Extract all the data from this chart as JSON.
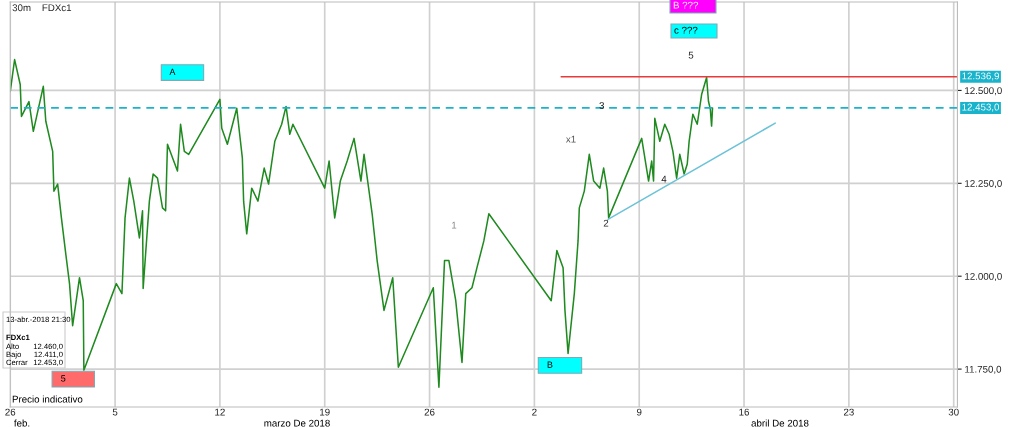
{
  "chart_data": {
    "type": "line",
    "title": "30m    FDXc1",
    "xlim": [
      "2018-02-26",
      "2018-04-30T06:00"
    ],
    "ylim": [
      11648,
      12738
    ],
    "xticks": [
      {
        "value": "2018-02-26",
        "label": "26"
      },
      {
        "value": "2018-03-05",
        "label": "5"
      },
      {
        "value": "2018-03-12",
        "label": "12"
      },
      {
        "value": "2018-03-19",
        "label": "19"
      },
      {
        "value": "2018-03-26",
        "label": "26"
      },
      {
        "value": "2018-04-02",
        "label": "2"
      },
      {
        "value": "2018-04-09",
        "label": "9"
      },
      {
        "value": "2018-04-16",
        "label": "16"
      },
      {
        "value": "2018-04-23",
        "label": "23"
      },
      {
        "value": "2018-04-30",
        "label": "30"
      }
    ],
    "yticks": [
      {
        "value": 11750,
        "label": "11.750,0"
      },
      {
        "value": 12000,
        "label": "12.000,0"
      },
      {
        "value": 12250,
        "label": "12.250,0"
      },
      {
        "value": 12500,
        "label": "12.500,0"
      }
    ],
    "grid": true,
    "marker": "none",
    "line_style": "solid",
    "series": [
      {
        "color": "#1f8a1f",
        "x": [
          "2018-02-26T00:00",
          "2018-02-26T07:00",
          "2018-02-26T16:00",
          "2018-02-26T18:00",
          "2018-02-27T06:00",
          "2018-02-27T13:00",
          "2018-02-28T05:00",
          "2018-02-28T09:00",
          "2018-02-28T20:00",
          "2018-02-28T22:00",
          "2018-03-01T04:00",
          "2018-03-01T10:00",
          "2018-03-01T17:00",
          "2018-03-01T23:00",
          "2018-03-02T04:00",
          "2018-03-02T15:00",
          "2018-03-02T21:00",
          "2018-03-02T22:00",
          "2018-03-05T02:00",
          "2018-03-05T11:00",
          "2018-03-05T16:00",
          "2018-03-05T23:00",
          "2018-03-06T06:00",
          "2018-03-06T15:00",
          "2018-03-06T20:00",
          "2018-03-06T21:00",
          "2018-03-07T07:00",
          "2018-03-07T13:00",
          "2018-03-07T20:00",
          "2018-03-08T04:00",
          "2018-03-08T09:00",
          "2018-03-08T12:00",
          "2018-03-09T04:00",
          "2018-03-09T09:00",
          "2018-03-09T15:00",
          "2018-03-09T22:00",
          "2018-03-12T00:00",
          "2018-03-12T03:00",
          "2018-03-12T12:00",
          "2018-03-13T03:00",
          "2018-03-13T12:00",
          "2018-03-13T14:00",
          "2018-03-13T19:00",
          "2018-03-14T03:00",
          "2018-03-14T13:00",
          "2018-03-14T23:00",
          "2018-03-15T06:00",
          "2018-03-15T16:00",
          "2018-03-16T03:00",
          "2018-03-16T10:00",
          "2018-03-16T16:00",
          "2018-03-16T21:00",
          "2018-03-19T00:00",
          "2018-03-19T07:00",
          "2018-03-19T16:00",
          "2018-03-20T01:00",
          "2018-03-20T12:00",
          "2018-03-20T23:00",
          "2018-03-21T10:00",
          "2018-03-21T15:00",
          "2018-03-22T04:00",
          "2018-03-22T12:00",
          "2018-03-22T23:00",
          "2018-03-23T13:00",
          "2018-03-23T22:00",
          "2018-03-26T06:00",
          "2018-03-26T15:00",
          "2018-03-27T00:00",
          "2018-03-27T07:00",
          "2018-03-27T18:00",
          "2018-03-28T04:00",
          "2018-03-28T10:00",
          "2018-03-28T20:00",
          "2018-03-29T04:00",
          "2018-03-29T15:00",
          "2018-03-29T23:00",
          "2018-04-03T03:00",
          "2018-04-03T12:00",
          "2018-04-03T22:00",
          "2018-04-04T01:00",
          "2018-04-04T06:00",
          "2018-04-04T16:00",
          "2018-04-04T22:00",
          "2018-04-05T00:00",
          "2018-04-05T08:00",
          "2018-04-05T16:00",
          "2018-04-05T23:00",
          "2018-04-06T09:00",
          "2018-04-06T15:00",
          "2018-04-06T21:00",
          "2018-04-06T23:00",
          "2018-04-09T04:00",
          "2018-04-09T15:00",
          "2018-04-09T20:00",
          "2018-04-09T23:00",
          "2018-04-10T01:00",
          "2018-04-10T09:00",
          "2018-04-10T17:00",
          "2018-04-11T00:00",
          "2018-04-11T06:00",
          "2018-04-11T12:00",
          "2018-04-11T17:00",
          "2018-04-12T00:00",
          "2018-04-12T05:00",
          "2018-04-12T08:00",
          "2018-04-12T14:00",
          "2018-04-12T21:00",
          "2018-04-13T04:00",
          "2018-04-13T12:00",
          "2018-04-13T15:00",
          "2018-04-13T18:00",
          "2018-04-13T20:00",
          "2018-04-13T21:30"
        ],
        "values": [
          12497,
          12583,
          12516,
          12430,
          12470,
          12390,
          12511,
          12417,
          12336,
          12229,
          12248,
          12157,
          12060,
          11980,
          11867,
          11996,
          11934,
          11747,
          11980,
          11953,
          12157,
          12264,
          12202,
          12103,
          12176,
          11967,
          12202,
          12275,
          12264,
          12184,
          12176,
          12355,
          12283,
          12409,
          12336,
          12328,
          12476,
          12398,
          12355,
          12452,
          12318,
          12202,
          12114,
          12237,
          12202,
          12291,
          12248,
          12363,
          12409,
          12457,
          12382,
          12409,
          12237,
          12310,
          12157,
          12256,
          12310,
          12371,
          12256,
          12328,
          12168,
          12042,
          11908,
          11996,
          11755,
          11969,
          11701,
          12042,
          12042,
          11934,
          11768,
          11953,
          11969,
          12023,
          12095,
          12168,
          11934,
          12069,
          12023,
          11908,
          11792,
          11953,
          12095,
          12184,
          12229,
          12328,
          12256,
          12237,
          12291,
          12229,
          12157,
          12371,
          12256,
          12310,
          12256,
          12425,
          12363,
          12409,
          12382,
          12336,
          12264,
          12328,
          12275,
          12302,
          12363,
          12436,
          12409,
          12489,
          12535,
          12471,
          12449,
          12404,
          12453
        ]
      },
      {
        "color": "#e83a3a",
        "x": [
          "2018-04-03T19:00",
          "2018-04-30T06:00"
        ],
        "values": [
          12536.9,
          12536.9
        ]
      },
      {
        "color": "#6cc3d8",
        "x": [
          "2018-04-06T22:00",
          "2018-04-18T02:00"
        ],
        "values": [
          12153,
          12412
        ]
      }
    ],
    "ref_lines": [
      {
        "axis": "y",
        "value": 12453.0,
        "label": "12.453,0",
        "color": "#1ab3cc",
        "line_style": "dashed"
      }
    ],
    "annotations": [
      {
        "text": "A",
        "x": "2018-03-09T12:00",
        "y": 12548
      },
      {
        "text": "B",
        "x": "2018-04-03T17:00",
        "y": 11760
      },
      {
        "text": "5",
        "x": "2018-03-02T05:00",
        "y": 11723
      },
      {
        "text": "3",
        "x": "2018-04-06T12:00",
        "y": 12457
      },
      {
        "text": "12.536,9",
        "x": "2018-04-30T06:00",
        "y": 12536.9
      },
      "B ???",
      "c ???",
      "5",
      "2",
      "4",
      "1",
      "x1",
      "13-abr.-2018 21:30",
      "FDXc1",
      "Alto",
      "12.460,0",
      "Bajo",
      "12.411,0",
      "Cerrar",
      "12.453,0",
      "Precio indicativo",
      "feb.",
      "marzo De 2018",
      "abril De 2018"
    ]
  }
}
